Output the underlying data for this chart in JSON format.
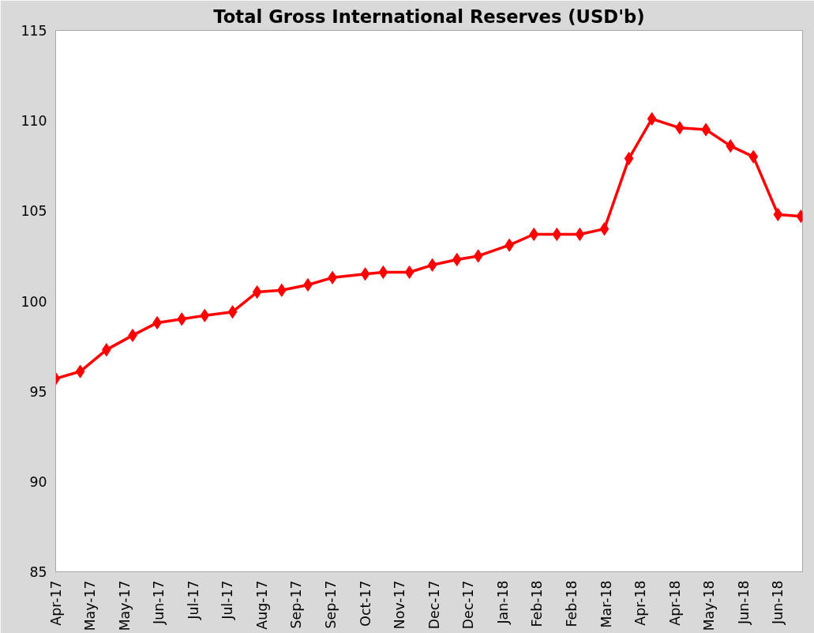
{
  "chart_data": {
    "type": "line",
    "title": "Total Gross International Reserves (USD'b)",
    "x": [
      "2017-04-14",
      "2017-04-29",
      "2017-05-15",
      "2017-05-31",
      "2017-06-15",
      "2017-06-30",
      "2017-07-14",
      "2017-07-31",
      "2017-08-15",
      "2017-08-30",
      "2017-09-15",
      "2017-09-30",
      "2017-10-20",
      "2017-10-31",
      "2017-11-16",
      "2017-11-30",
      "2017-12-15",
      "2017-12-28",
      "2018-01-16",
      "2018-01-31",
      "2018-02-14",
      "2018-02-28",
      "2018-03-15",
      "2018-03-30",
      "2018-04-13",
      "2018-04-30",
      "2018-05-16",
      "2018-05-31",
      "2018-06-14",
      "2018-06-29",
      "2018-07-13"
    ],
    "series": [
      {
        "color": "#ff0000",
        "values": [
          95.7,
          96.1,
          97.3,
          98.1,
          98.8,
          99.0,
          99.2,
          99.4,
          100.5,
          100.6,
          100.9,
          101.3,
          101.5,
          101.6,
          101.6,
          102.0,
          102.3,
          102.5,
          103.1,
          103.7,
          103.7,
          103.7,
          104.0,
          107.9,
          110.1,
          109.6,
          109.5,
          108.6,
          108.0,
          104.8,
          104.7
        ]
      }
    ],
    "marker": "diamond",
    "line_style": "solid",
    "grid": false,
    "ylim": [
      85,
      115
    ],
    "yticks": [
      85,
      90,
      95,
      100,
      105,
      110,
      115
    ],
    "xlim": [
      "2017-04-14",
      "2018-07-14"
    ],
    "xticks": [
      {
        "value": "2017-04-14",
        "label": "Apr-17"
      },
      {
        "value": "2017-05-05",
        "label": "May-17"
      },
      {
        "value": "2017-05-26",
        "label": "May-17"
      },
      {
        "value": "2017-06-16",
        "label": "Jun-17"
      },
      {
        "value": "2017-07-07",
        "label": "Jul-17"
      },
      {
        "value": "2017-07-28",
        "label": "Jul-17"
      },
      {
        "value": "2017-08-18",
        "label": "Aug-17"
      },
      {
        "value": "2017-09-08",
        "label": "Sep-17"
      },
      {
        "value": "2017-09-29",
        "label": "Sep-17"
      },
      {
        "value": "2017-10-20",
        "label": "Oct-17"
      },
      {
        "value": "2017-11-10",
        "label": "Nov-17"
      },
      {
        "value": "2017-12-01",
        "label": "Dec-17"
      },
      {
        "value": "2017-12-22",
        "label": "Dec-17"
      },
      {
        "value": "2018-01-12",
        "label": "Jan-18"
      },
      {
        "value": "2018-02-02",
        "label": "Feb-18"
      },
      {
        "value": "2018-02-23",
        "label": "Feb-18"
      },
      {
        "value": "2018-03-16",
        "label": "Mar-18"
      },
      {
        "value": "2018-04-06",
        "label": "Apr-18"
      },
      {
        "value": "2018-04-27",
        "label": "Apr-18"
      },
      {
        "value": "2018-05-18",
        "label": "May-18"
      },
      {
        "value": "2018-06-08",
        "label": "Jun-18"
      },
      {
        "value": "2018-06-29",
        "label": "Jun-18"
      }
    ]
  }
}
